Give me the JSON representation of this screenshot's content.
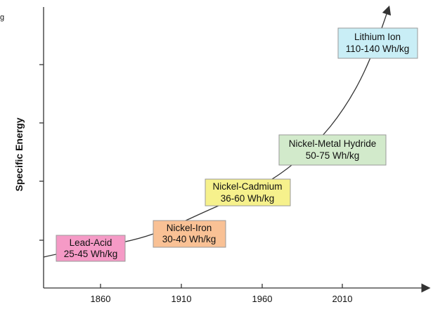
{
  "corner_label": "g",
  "y_axis_label": "Specific Energy",
  "x_labels": [
    "1860",
    "1910",
    "1960",
    "2010"
  ],
  "boxes": [
    {
      "name": "Lead-Acid",
      "energy": "25-45 Wh/kg"
    },
    {
      "name": "Nickel-Iron",
      "energy": "30-40 Wh/kg"
    },
    {
      "name": "Nickel-Cadmium",
      "energy": "36-60 Wh/kg"
    },
    {
      "name": "Nickel-Metal Hydride",
      "energy": "50-75 Wh/kg"
    },
    {
      "name": "Lithium Ion",
      "energy": "110-140 Wh/kg"
    }
  ]
}
